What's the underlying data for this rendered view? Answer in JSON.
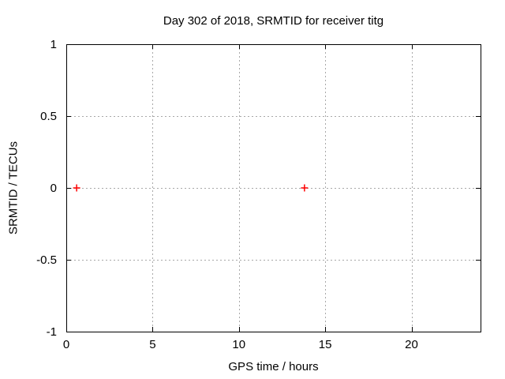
{
  "window": {
    "background": "#ffffff"
  },
  "chart_data": {
    "type": "scatter",
    "title": "Day 302 of 2018, SRMTID for receiver titg",
    "xlabel": "GPS time / hours",
    "ylabel": "SRMTID / TECUs",
    "xlim": [
      0,
      24
    ],
    "ylim": [
      -1,
      1
    ],
    "xticks": [
      0,
      5,
      10,
      15,
      20
    ],
    "yticks": [
      -1,
      -0.5,
      0,
      0.5,
      1
    ],
    "grid": true,
    "legend": false,
    "series": [
      {
        "name": "SRMTID",
        "marker": "plus",
        "color": "#ff0000",
        "points": [
          [
            0.6,
            0.0
          ],
          [
            13.8,
            0.0
          ]
        ]
      }
    ],
    "style": {
      "grid_color": "#a8a8a8",
      "axis_color": "#000000",
      "text_color": "#000000",
      "background": "#ffffff",
      "marker_size": 9,
      "tick_length": 6
    }
  }
}
